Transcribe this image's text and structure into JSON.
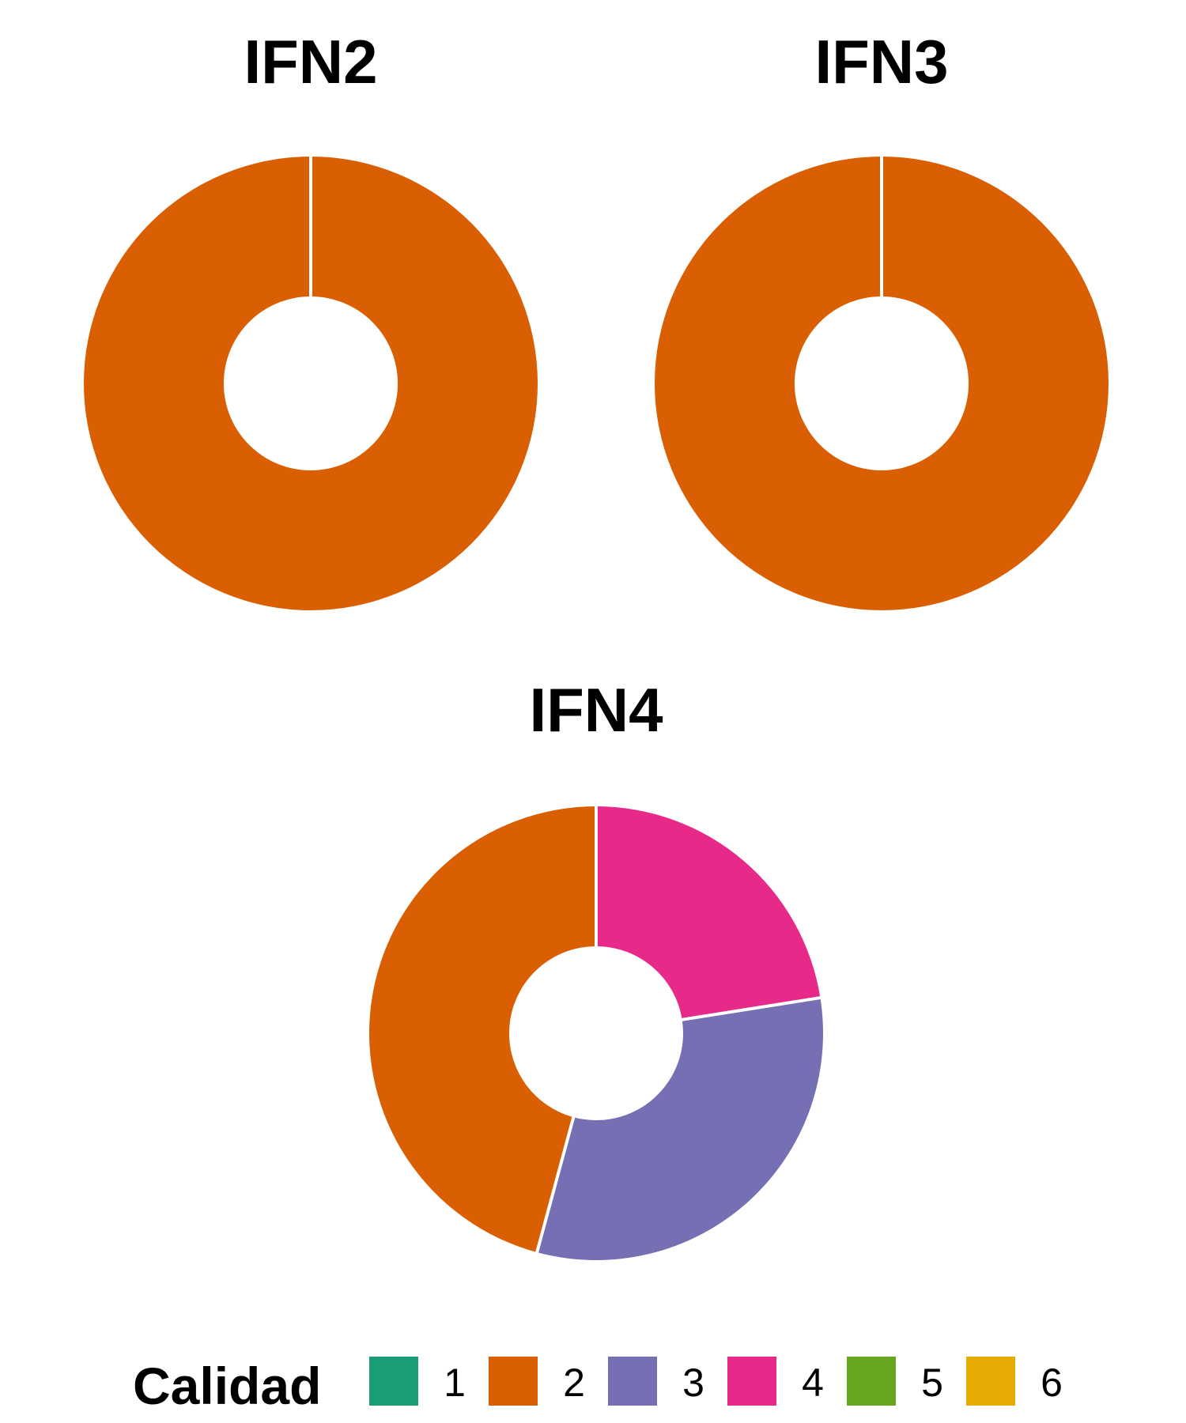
{
  "chart_data": [
    {
      "type": "donut",
      "title": "IFN2",
      "categories": [
        "2"
      ],
      "values": [
        100
      ]
    },
    {
      "type": "donut",
      "title": "IFN3",
      "categories": [
        "2"
      ],
      "values": [
        100
      ]
    },
    {
      "type": "donut",
      "title": "IFN4",
      "categories": [
        "4",
        "3",
        "2"
      ],
      "values": [
        22.5,
        31.7,
        45.8
      ]
    }
  ],
  "legend": {
    "title": "Calidad",
    "position": "bottom",
    "items": [
      {
        "label": "1",
        "color": "#1b9e77"
      },
      {
        "label": "2",
        "color": "#d95f02"
      },
      {
        "label": "3",
        "color": "#7570b3"
      },
      {
        "label": "4",
        "color": "#e7298a"
      },
      {
        "label": "5",
        "color": "#66a61e"
      },
      {
        "label": "6",
        "color": "#e6ab02"
      }
    ]
  }
}
